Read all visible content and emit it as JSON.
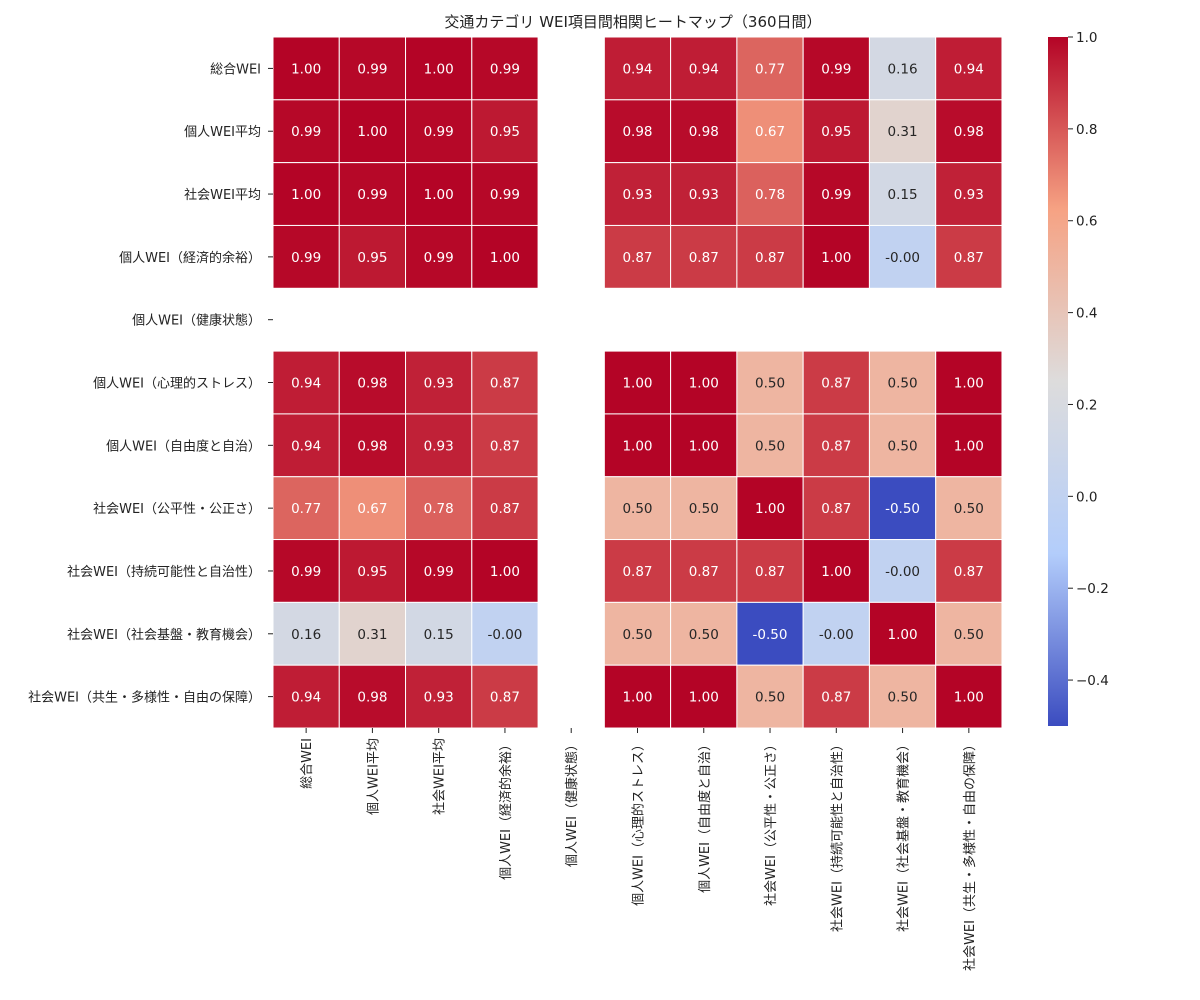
{
  "chart_data": {
    "type": "heatmap",
    "title": "交通カテゴリ WEI項目間相関ヒートマップ（360日間）",
    "row_labels": [
      "総合WEI",
      "個人WEI平均",
      "社会WEI平均",
      "個人WEI（経済的余裕）",
      "個人WEI（健康状態）",
      "個人WEI（心理的ストレス）",
      "個人WEI（自由度と自治）",
      "社会WEI（公平性・公正さ）",
      "社会WEI（持続可能性と自治性）",
      "社会WEI（社会基盤・教育機会）",
      "社会WEI（共生・多様性・自由の保障）"
    ],
    "col_labels": [
      "総合WEI",
      "個人WEI平均",
      "社会WEI平均",
      "個人WEI（経済的余裕）",
      "個人WEI（健康状態）",
      "個人WEI（心理的ストレス）",
      "個人WEI（自由度と自治）",
      "社会WEI（公平性・公正さ）",
      "社会WEI（持続可能性と自治性）",
      "社会WEI（社会基盤・教育機会）",
      "社会WEI（共生・多様性・自由の保障）"
    ],
    "values": [
      [
        1.0,
        0.99,
        1.0,
        0.99,
        null,
        0.94,
        0.94,
        0.77,
        0.99,
        0.16,
        0.94
      ],
      [
        0.99,
        1.0,
        0.99,
        0.95,
        null,
        0.98,
        0.98,
        0.67,
        0.95,
        0.31,
        0.98
      ],
      [
        1.0,
        0.99,
        1.0,
        0.99,
        null,
        0.93,
        0.93,
        0.78,
        0.99,
        0.15,
        0.93
      ],
      [
        0.99,
        0.95,
        0.99,
        1.0,
        null,
        0.87,
        0.87,
        0.87,
        1.0,
        -0.0,
        0.87
      ],
      [
        null,
        null,
        null,
        null,
        null,
        null,
        null,
        null,
        null,
        null,
        null
      ],
      [
        0.94,
        0.98,
        0.93,
        0.87,
        null,
        1.0,
        1.0,
        0.5,
        0.87,
        0.5,
        1.0
      ],
      [
        0.94,
        0.98,
        0.93,
        0.87,
        null,
        1.0,
        1.0,
        0.5,
        0.87,
        0.5,
        1.0
      ],
      [
        0.77,
        0.67,
        0.78,
        0.87,
        null,
        0.5,
        0.5,
        1.0,
        0.87,
        -0.5,
        0.5
      ],
      [
        0.99,
        0.95,
        0.99,
        1.0,
        null,
        0.87,
        0.87,
        0.87,
        1.0,
        -0.0,
        0.87
      ],
      [
        0.16,
        0.31,
        0.15,
        -0.0,
        null,
        0.5,
        0.5,
        -0.5,
        -0.0,
        1.0,
        0.5
      ],
      [
        0.94,
        0.98,
        0.93,
        0.87,
        null,
        1.0,
        1.0,
        0.5,
        0.87,
        0.5,
        1.0
      ]
    ],
    "value_labels": [
      [
        "1.00",
        "0.99",
        "1.00",
        "0.99",
        "",
        "0.94",
        "0.94",
        "0.77",
        "0.99",
        "0.16",
        "0.94"
      ],
      [
        "0.99",
        "1.00",
        "0.99",
        "0.95",
        "",
        "0.98",
        "0.98",
        "0.67",
        "0.95",
        "0.31",
        "0.98"
      ],
      [
        "1.00",
        "0.99",
        "1.00",
        "0.99",
        "",
        "0.93",
        "0.93",
        "0.78",
        "0.99",
        "0.15",
        "0.93"
      ],
      [
        "0.99",
        "0.95",
        "0.99",
        "1.00",
        "",
        "0.87",
        "0.87",
        "0.87",
        "1.00",
        "-0.00",
        "0.87"
      ],
      [
        "",
        "",
        "",
        "",
        "",
        "",
        "",
        "",
        "",
        "",
        ""
      ],
      [
        "0.94",
        "0.98",
        "0.93",
        "0.87",
        "",
        "1.00",
        "1.00",
        "0.50",
        "0.87",
        "0.50",
        "1.00"
      ],
      [
        "0.94",
        "0.98",
        "0.93",
        "0.87",
        "",
        "1.00",
        "1.00",
        "0.50",
        "0.87",
        "0.50",
        "1.00"
      ],
      [
        "0.77",
        "0.67",
        "0.78",
        "0.87",
        "",
        "0.50",
        "0.50",
        "1.00",
        "0.87",
        "-0.50",
        "0.50"
      ],
      [
        "0.99",
        "0.95",
        "0.99",
        "1.00",
        "",
        "0.87",
        "0.87",
        "0.87",
        "1.00",
        "-0.00",
        "0.87"
      ],
      [
        "0.16",
        "0.31",
        "0.15",
        "-0.00",
        "",
        "0.50",
        "0.50",
        "-0.50",
        "-0.00",
        "1.00",
        "0.50"
      ],
      [
        "0.94",
        "0.98",
        "0.93",
        "0.87",
        "",
        "1.00",
        "1.00",
        "0.50",
        "0.87",
        "0.50",
        "1.00"
      ]
    ],
    "colormap": "coolwarm",
    "vmin": -0.5,
    "vmax": 1.0,
    "colorbar_ticks": [
      1.0,
      0.8,
      0.6,
      0.4,
      0.2,
      0.0,
      -0.2,
      -0.4
    ],
    "colorbar_tick_labels": [
      "1.0",
      "0.8",
      "0.6",
      "0.4",
      "0.2",
      "0.0",
      "−0.2",
      "−0.4"
    ],
    "colorbar_colors": [
      "#3b4cc0",
      "#b3cdfb",
      "#dddcdc",
      "#f6a283",
      "#b40426"
    ],
    "grid": false
  }
}
